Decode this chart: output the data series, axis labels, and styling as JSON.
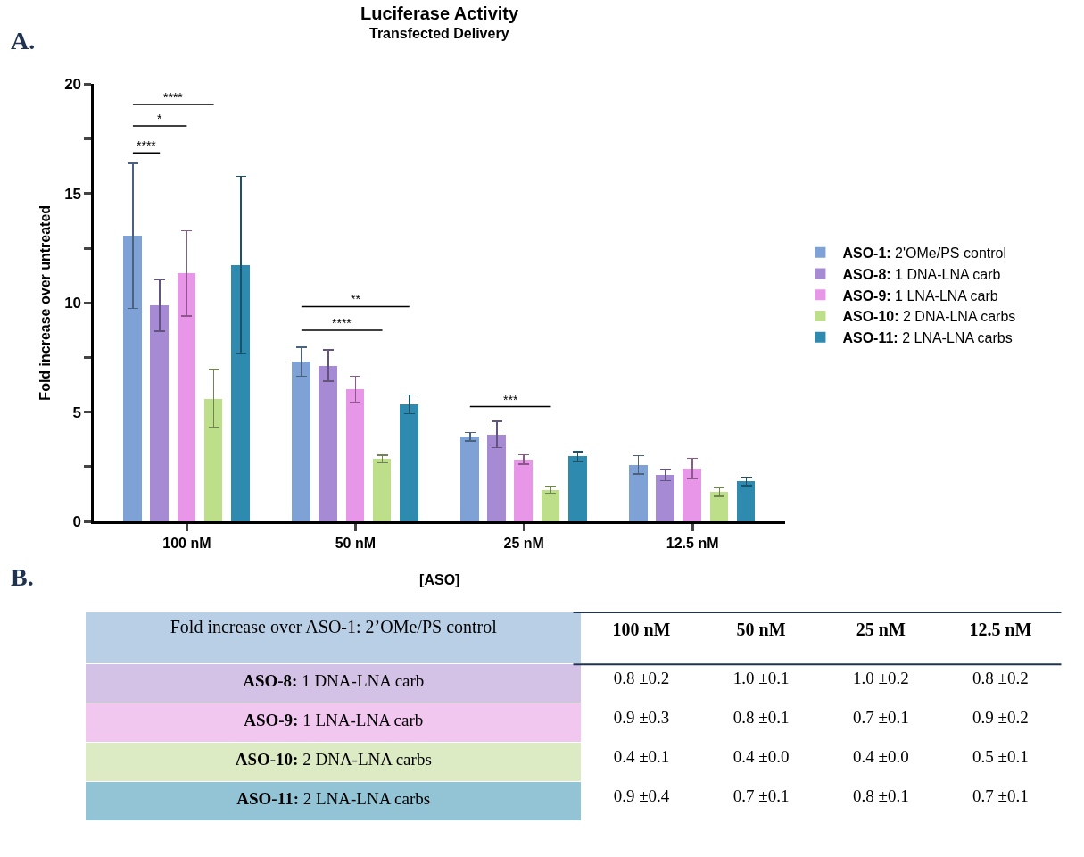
{
  "chart_data": [
    {
      "type": "bar",
      "title": "Luciferase Activity",
      "subtitle": "Transfected Delivery",
      "xlabel": "[ASO]",
      "ylabel": "Fold increase over untreated",
      "categories": [
        "100 nM",
        "50 nM",
        "25 nM",
        "12.5 nM"
      ],
      "series": [
        {
          "name": "ASO-1: 2'OMe/PS control",
          "color": "#7ea2d6",
          "values": [
            13.04,
            7.31,
            3.88,
            2.57
          ],
          "errors": [
            [
              9.75,
              16.38
            ],
            [
              6.65,
              7.97
            ],
            [
              3.69,
              4.07
            ],
            [
              2.17,
              3.0
            ]
          ]
        },
        {
          "name": "ASO-8: 1 DNA-LNA carb",
          "color": "#a68bd4",
          "values": [
            9.87,
            7.11,
            3.96,
            2.11
          ],
          "errors": [
            [
              8.7,
              11.07
            ],
            [
              6.41,
              7.84
            ],
            [
              3.38,
              4.58
            ],
            [
              1.87,
              2.38
            ]
          ]
        },
        {
          "name": "ASO-9: 1 LNA-LNA carb",
          "color": "#e897e8",
          "values": [
            11.34,
            6.05,
            2.83,
            2.41
          ],
          "errors": [
            [
              9.4,
              13.29
            ],
            [
              5.45,
              6.64
            ],
            [
              2.63,
              3.04
            ],
            [
              1.95,
              2.88
            ]
          ]
        },
        {
          "name": "ASO-10: 2 DNA-LNA carbs",
          "color": "#bddf8a",
          "values": [
            5.6,
            2.86,
            1.44,
            1.36
          ],
          "errors": [
            [
              4.3,
              6.94
            ],
            [
              2.71,
              3.03
            ],
            [
              1.29,
              1.59
            ],
            [
              1.16,
              1.56
            ]
          ]
        },
        {
          "name": "ASO-11: 2 LNA-LNA carbs",
          "color": "#2e8aae",
          "values": [
            11.72,
            5.36,
            2.96,
            1.83
          ],
          "errors": [
            [
              7.7,
              15.78
            ],
            [
              4.92,
              5.79
            ],
            [
              2.75,
              3.19
            ],
            [
              1.64,
              2.03
            ]
          ]
        }
      ],
      "ylim": [
        0,
        20
      ],
      "yticks": [
        0,
        {
          "value": 2.5,
          "label": null
        },
        5,
        {
          "value": 7.5,
          "label": null
        },
        10,
        {
          "value": 12.5,
          "label": null
        },
        15,
        {
          "value": 17.5,
          "label": null
        },
        20
      ],
      "legend": "right",
      "annotations": [
        "A.",
        "****",
        "*",
        "****",
        "****",
        "**",
        "***"
      ]
    },
    {
      "type": "other",
      "title": "B.",
      "categories": [
        "Fold increase over ASO-1: 2’OMe/PS control",
        "100 nM",
        "50 nM",
        "25 nM",
        "12.5 nM"
      ],
      "y_categories": [
        "ASO-8: 1 DNA-LNA carb",
        "ASO-9: 1 LNA-LNA carb",
        "ASO-10: 2 DNA-LNA carbs",
        "ASO-11: 2 LNA-LNA carbs"
      ],
      "colors": [
        "#b9cfe6",
        "#d4c2e6",
        "#f1c6ef",
        "#dcebc4",
        "#93c4d6"
      ],
      "cell_labels": [
        [
          "0.8 ±0.2",
          "1.0 ±0.1",
          "1.0 ±0.2",
          "0.8 ±0.2"
        ],
        [
          "0.9 ±0.3",
          "0.8 ±0.1",
          "0.7 ±0.1",
          "0.9 ±0.2"
        ],
        [
          "0.4 ±0.1",
          "0.4 ±0.0",
          "0.4 ±0.0",
          "0.5 ±0.1"
        ],
        [
          "0.9 ±0.4",
          "0.7 ±0.1",
          "0.8 ±0.1",
          "0.7 ±0.1"
        ]
      ]
    }
  ]
}
